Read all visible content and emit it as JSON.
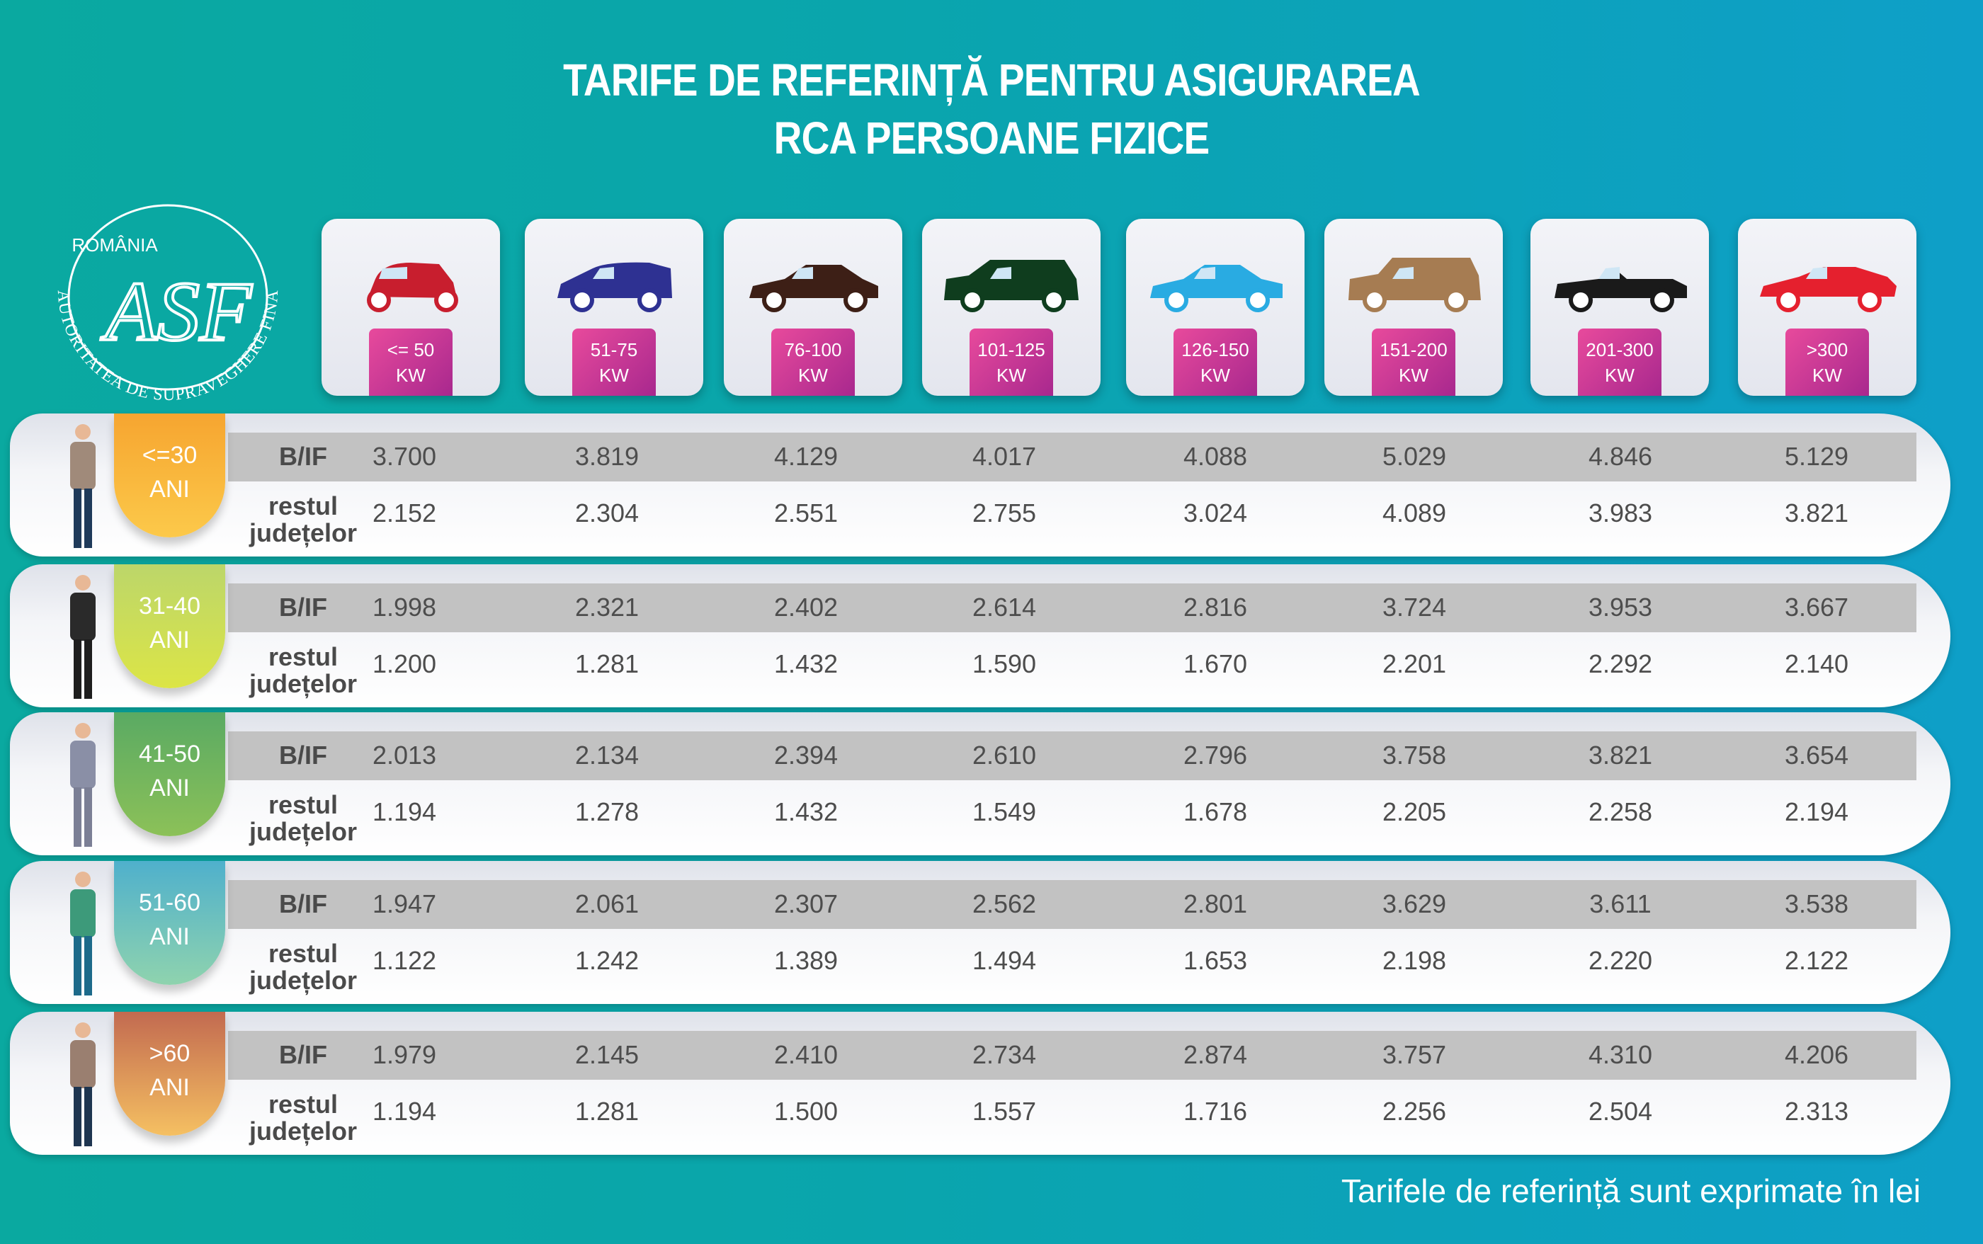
{
  "header": {
    "title_line1": "TARIFE DE REFERINȚĂ PENTRU ASIGURAREA",
    "title_line2": "RCA PERSOANE FIZICE"
  },
  "logo": {
    "country": "ROMÂNIA",
    "monogram": "ASF",
    "ring_text": "AUTORITATEA DE SUPRAVEGHERE FINANCIARĂ"
  },
  "power_categories": [
    {
      "line1": "<= 50",
      "line2": "KW",
      "car_color": "#c81e2e",
      "car_icon": "small-hatchback-icon"
    },
    {
      "line1": "51-75",
      "line2": "KW",
      "car_color": "#2e3192",
      "car_icon": "hatchback-icon"
    },
    {
      "line1": "76-100",
      "line2": "KW",
      "car_color": "#3d1f16",
      "car_icon": "sedan-icon"
    },
    {
      "line1": "101-125",
      "line2": "KW",
      "car_color": "#0f3d1e",
      "car_icon": "minivan-icon"
    },
    {
      "line1": "126-150",
      "line2": "KW",
      "car_color": "#29abe2",
      "car_icon": "sedan-icon"
    },
    {
      "line1": "151-200",
      "line2": "KW",
      "car_color": "#a67c52",
      "car_icon": "suv-icon"
    },
    {
      "line1": "201-300",
      "line2": "KW",
      "car_color": "#1a1a1a",
      "car_icon": "convertible-icon"
    },
    {
      "line1": ">300",
      "line2": "KW",
      "car_color": "#e5202e",
      "car_icon": "sports-car-icon"
    }
  ],
  "row_labels": {
    "bif": "B/IF",
    "rest_line1": "restul",
    "rest_line2": "județelor"
  },
  "age_groups": [
    {
      "line1": "<=30",
      "line2": "ANI",
      "colors": [
        "#f6a530",
        "#fcc94a"
      ],
      "bif": [
        "3.700",
        "3.819",
        "4.129",
        "4.017",
        "4.088",
        "5.029",
        "4.846",
        "5.129"
      ],
      "rest": [
        "2.152",
        "2.304",
        "2.551",
        "2.755",
        "3.024",
        "4.089",
        "3.983",
        "3.821"
      ]
    },
    {
      "line1": "31-40",
      "line2": "ANI",
      "colors": [
        "#bcd66a",
        "#dce546"
      ],
      "bif": [
        "1.998",
        "2.321",
        "2.402",
        "2.614",
        "2.816",
        "3.724",
        "3.953",
        "3.667"
      ],
      "rest": [
        "1.200",
        "1.281",
        "1.432",
        "1.590",
        "1.670",
        "2.201",
        "2.292",
        "2.140"
      ]
    },
    {
      "line1": "41-50",
      "line2": "ANI",
      "colors": [
        "#5aaa63",
        "#8cc158"
      ],
      "bif": [
        "2.013",
        "2.134",
        "2.394",
        "2.610",
        "2.796",
        "3.758",
        "3.821",
        "3.654"
      ],
      "rest": [
        "1.194",
        "1.278",
        "1.432",
        "1.549",
        "1.678",
        "2.205",
        "2.258",
        "2.194"
      ]
    },
    {
      "line1": "51-60",
      "line2": "ANI",
      "colors": [
        "#4fb0cc",
        "#8fd3ae"
      ],
      "bif": [
        "1.947",
        "2.061",
        "2.307",
        "2.562",
        "2.801",
        "3.629",
        "3.611",
        "3.538"
      ],
      "rest": [
        "1.122",
        "1.242",
        "1.389",
        "1.494",
        "1.653",
        "2.198",
        "2.220",
        "2.122"
      ]
    },
    {
      "line1": ">60",
      "line2": "ANI",
      "colors": [
        "#c26a50",
        "#f5c062"
      ],
      "bif": [
        "1.979",
        "2.145",
        "2.410",
        "2.734",
        "2.874",
        "3.757",
        "4.310",
        "4.206"
      ],
      "rest": [
        "1.194",
        "1.281",
        "1.500",
        "1.557",
        "1.716",
        "2.256",
        "2.504",
        "2.313"
      ]
    }
  ],
  "footer": {
    "note": "Tarifele de referință sunt exprimate în lei"
  }
}
